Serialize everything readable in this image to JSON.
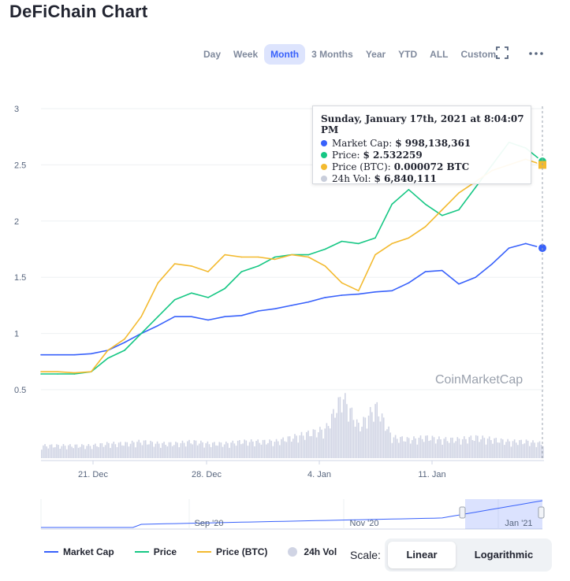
{
  "title": "DeFiChain Chart",
  "ranges": [
    {
      "label": "Day",
      "active": false
    },
    {
      "label": "Week",
      "active": false
    },
    {
      "label": "Month",
      "active": true
    },
    {
      "label": "3 Months",
      "active": false
    },
    {
      "label": "Year",
      "active": false
    },
    {
      "label": "YTD",
      "active": false
    },
    {
      "label": "ALL",
      "active": false
    },
    {
      "label": "Custom",
      "active": false
    }
  ],
  "icons": {
    "fullscreen": "fullscreen-icon",
    "more": "more-icon"
  },
  "watermark": "CoinMarketCap",
  "tooltip": {
    "title": "Sunday, January 17th, 2021 at 8:04:07 PM",
    "rows": [
      {
        "label": "Market Cap:",
        "value": "$ 998,138,361",
        "color": "#3861fb"
      },
      {
        "label": "Price:",
        "value": "$ 2.532259",
        "color": "#16c784"
      },
      {
        "label": "Price (BTC):",
        "value": "0.000072 BTC",
        "color": "#f3ba2f"
      },
      {
        "label": "24h Vol:",
        "value": "$ 6,840,111",
        "color": "#c9cedb"
      }
    ]
  },
  "legend": [
    {
      "label": "Market Cap",
      "color": "#3861fb",
      "kind": "line"
    },
    {
      "label": "Price",
      "color": "#16c784",
      "kind": "line"
    },
    {
      "label": "Price (BTC)",
      "color": "#f3ba2f",
      "kind": "line"
    },
    {
      "label": "24h Vol",
      "color": "#d0d4e4",
      "kind": "dot"
    }
  ],
  "scale": {
    "label": "Scale:",
    "options": [
      "Linear",
      "Logarithmic"
    ],
    "selected": "Linear"
  },
  "chart_data": {
    "type": "line",
    "ylim": [
      0.5,
      3
    ],
    "yticks": [
      "3",
      "2.5",
      "2",
      "1.5",
      "1",
      "0.5"
    ],
    "xticks": [
      "21. Dec",
      "28. Dec",
      "4. Jan",
      "11. Jan"
    ],
    "navigator_ticks": [
      "Sep '20",
      "Nov '20",
      "Jan '21"
    ],
    "grid": true,
    "x_dates": [
      "2020-12-18",
      "2020-12-19",
      "2020-12-20",
      "2020-12-21",
      "2020-12-22",
      "2020-12-23",
      "2020-12-24",
      "2020-12-25",
      "2020-12-26",
      "2020-12-27",
      "2020-12-28",
      "2020-12-29",
      "2020-12-30",
      "2020-12-31",
      "2021-01-01",
      "2021-01-02",
      "2021-01-03",
      "2021-01-04",
      "2021-01-05",
      "2021-01-06",
      "2021-01-07",
      "2021-01-08",
      "2021-01-09",
      "2021-01-10",
      "2021-01-11",
      "2021-01-12",
      "2021-01-13",
      "2021-01-14",
      "2021-01-15",
      "2021-01-16",
      "2021-01-17"
    ],
    "series": [
      {
        "name": "Market Cap",
        "color": "#3861fb",
        "values": [
          0.81,
          0.81,
          0.81,
          0.82,
          0.85,
          0.92,
          1.0,
          1.07,
          1.15,
          1.15,
          1.12,
          1.15,
          1.16,
          1.2,
          1.22,
          1.25,
          1.28,
          1.32,
          1.34,
          1.35,
          1.37,
          1.38,
          1.45,
          1.55,
          1.56,
          1.44,
          1.5,
          1.62,
          1.76,
          1.8,
          1.76
        ]
      },
      {
        "name": "Price",
        "color": "#16c784",
        "values": [
          0.64,
          0.64,
          0.64,
          0.66,
          0.78,
          0.85,
          1.0,
          1.15,
          1.3,
          1.36,
          1.32,
          1.4,
          1.55,
          1.6,
          1.68,
          1.7,
          1.7,
          1.75,
          1.82,
          1.8,
          1.85,
          2.15,
          2.28,
          2.15,
          2.05,
          2.1,
          2.3,
          2.5,
          2.7,
          2.65,
          2.53
        ]
      },
      {
        "name": "Price (BTC)",
        "color": "#f3ba2f",
        "values": [
          0.66,
          0.66,
          0.65,
          0.66,
          0.85,
          0.95,
          1.15,
          1.45,
          1.62,
          1.6,
          1.55,
          1.7,
          1.68,
          1.68,
          1.66,
          1.7,
          1.68,
          1.6,
          1.45,
          1.38,
          1.7,
          1.8,
          1.85,
          1.95,
          2.1,
          2.25,
          2.35,
          2.45,
          2.5,
          2.55,
          2.5
        ]
      },
      {
        "name": "24h Vol",
        "color": "#d0d4e4",
        "values": [
          0.6,
          0.6,
          0.6,
          0.6,
          0.7,
          0.7,
          0.8,
          0.7,
          0.7,
          0.8,
          0.7,
          0.7,
          0.8,
          0.8,
          0.8,
          1.0,
          1.2,
          1.4,
          3.0,
          1.5,
          2.5,
          1.0,
          0.9,
          1.0,
          0.9,
          0.9,
          1.0,
          0.9,
          0.8,
          0.8,
          0.7
        ]
      }
    ]
  }
}
